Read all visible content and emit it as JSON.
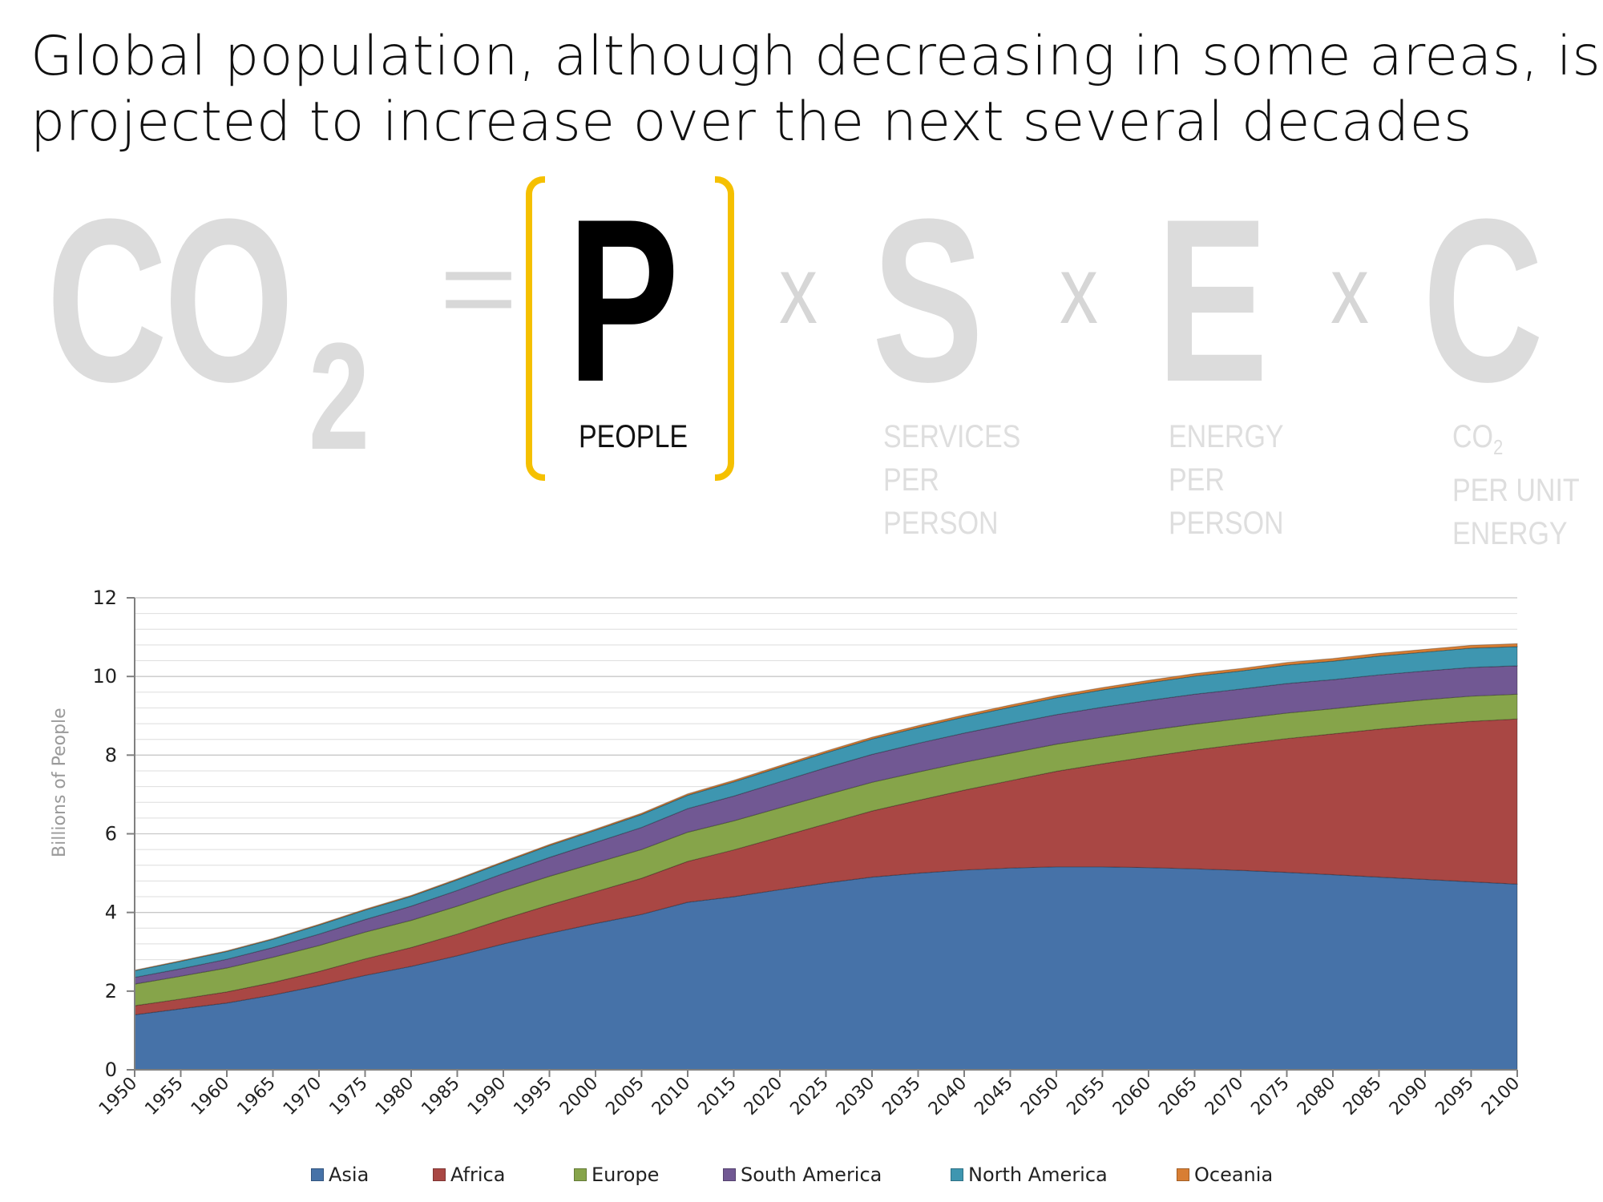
{
  "title": {
    "line1": "Global population, although decreasing in some areas, is",
    "line2": "projected to increase over the next several decades"
  },
  "equation": {
    "co2_main": "CO",
    "co2_sub": "2",
    "equals": "=",
    "p": "P",
    "p_label": "PEOPLE",
    "times": "x",
    "s": "S",
    "s_label": [
      "SERVICES",
      "PER",
      "PERSON"
    ],
    "e": "E",
    "e_label": [
      "ENERGY",
      "PER",
      "PERSON"
    ],
    "c": "C",
    "c_label_line1_main": "CO",
    "c_label_line1_sub": "2",
    "c_label_rest": [
      "PER UNIT",
      "ENERGY"
    ],
    "highlight_color": "#f5c000"
  },
  "chart_data": {
    "type": "area",
    "stacked": true,
    "title": "",
    "xlabel": "",
    "ylabel": "Billions of People",
    "ylim": [
      0,
      12
    ],
    "yticks": [
      0,
      2,
      4,
      6,
      8,
      10,
      12
    ],
    "minor_gridlines": true,
    "legend_position": "bottom",
    "x": [
      1950,
      1955,
      1960,
      1965,
      1970,
      1975,
      1980,
      1985,
      1990,
      1995,
      2000,
      2005,
      2010,
      2015,
      2020,
      2025,
      2030,
      2035,
      2040,
      2045,
      2050,
      2055,
      2060,
      2065,
      2070,
      2075,
      2080,
      2085,
      2090,
      2095,
      2100
    ],
    "series": [
      {
        "name": "Asia",
        "color": "#4672a8",
        "values": [
          1.4,
          1.55,
          1.7,
          1.9,
          2.14,
          2.4,
          2.63,
          2.9,
          3.2,
          3.47,
          3.72,
          3.95,
          4.26,
          4.4,
          4.58,
          4.75,
          4.9,
          5.0,
          5.08,
          5.13,
          5.16,
          5.16,
          5.14,
          5.11,
          5.07,
          5.02,
          4.96,
          4.9,
          4.84,
          4.78,
          4.72
        ]
      },
      {
        "name": "Africa",
        "color": "#a94744",
        "values": [
          0.23,
          0.25,
          0.28,
          0.32,
          0.36,
          0.42,
          0.48,
          0.55,
          0.63,
          0.72,
          0.81,
          0.92,
          1.04,
          1.19,
          1.34,
          1.5,
          1.68,
          1.85,
          2.03,
          2.22,
          2.43,
          2.62,
          2.82,
          3.02,
          3.21,
          3.4,
          3.58,
          3.76,
          3.93,
          4.08,
          4.2
        ]
      },
      {
        "name": "Europe",
        "color": "#86a44a",
        "values": [
          0.55,
          0.58,
          0.61,
          0.64,
          0.66,
          0.68,
          0.69,
          0.71,
          0.72,
          0.73,
          0.73,
          0.73,
          0.74,
          0.74,
          0.74,
          0.74,
          0.73,
          0.72,
          0.71,
          0.7,
          0.69,
          0.68,
          0.67,
          0.66,
          0.65,
          0.65,
          0.64,
          0.64,
          0.64,
          0.64,
          0.63
        ]
      },
      {
        "name": "South America",
        "color": "#715893",
        "values": [
          0.17,
          0.19,
          0.22,
          0.25,
          0.29,
          0.32,
          0.36,
          0.4,
          0.44,
          0.48,
          0.52,
          0.56,
          0.6,
          0.63,
          0.66,
          0.69,
          0.71,
          0.73,
          0.74,
          0.75,
          0.75,
          0.76,
          0.76,
          0.76,
          0.75,
          0.75,
          0.74,
          0.74,
          0.73,
          0.73,
          0.72
        ]
      },
      {
        "name": "North America",
        "color": "#3e96b0",
        "values": [
          0.17,
          0.19,
          0.2,
          0.21,
          0.23,
          0.24,
          0.25,
          0.27,
          0.28,
          0.3,
          0.31,
          0.33,
          0.34,
          0.36,
          0.37,
          0.38,
          0.39,
          0.4,
          0.41,
          0.42,
          0.43,
          0.44,
          0.45,
          0.46,
          0.46,
          0.47,
          0.47,
          0.48,
          0.48,
          0.49,
          0.49
        ]
      },
      {
        "name": "Oceania",
        "color": "#d87e33",
        "values": [
          0.013,
          0.014,
          0.016,
          0.018,
          0.02,
          0.022,
          0.023,
          0.025,
          0.027,
          0.029,
          0.031,
          0.034,
          0.037,
          0.04,
          0.043,
          0.045,
          0.048,
          0.05,
          0.053,
          0.055,
          0.057,
          0.059,
          0.061,
          0.063,
          0.064,
          0.066,
          0.067,
          0.068,
          0.069,
          0.071,
          0.072
        ]
      }
    ]
  }
}
